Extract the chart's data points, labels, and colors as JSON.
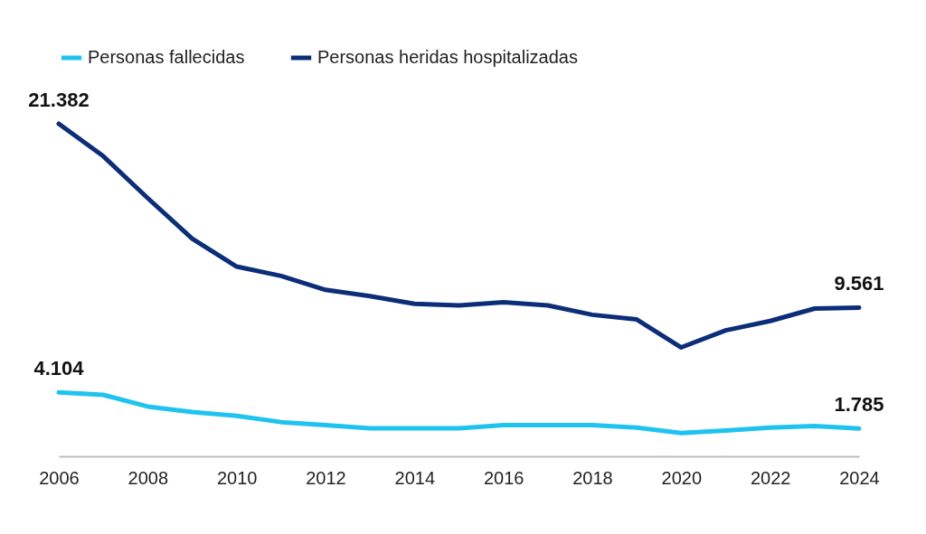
{
  "chart_data": {
    "type": "line",
    "x": [
      2006,
      2007,
      2008,
      2009,
      2010,
      2011,
      2012,
      2013,
      2014,
      2015,
      2016,
      2017,
      2018,
      2019,
      2020,
      2021,
      2022,
      2023,
      2024
    ],
    "xlim": [
      2006,
      2024
    ],
    "xticks": [
      2006,
      2008,
      2010,
      2012,
      2014,
      2016,
      2018,
      2020,
      2022,
      2024
    ],
    "tick_labels": "x",
    "grid": false,
    "legend": "top",
    "line_style": "solid",
    "series": [
      {
        "name": "Personas fallecidas",
        "color": "#1fc3ef",
        "values": [
          4104,
          3950,
          3200,
          2850,
          2600,
          2200,
          2000,
          1800,
          1800,
          1800,
          2000,
          2000,
          2000,
          1850,
          1500,
          1650,
          1850,
          1950,
          1785
        ],
        "value_labels": [
          "4.104",
          null,
          null,
          null,
          null,
          null,
          null,
          null,
          null,
          null,
          null,
          null,
          null,
          null,
          null,
          null,
          null,
          null,
          "1.785"
        ]
      },
      {
        "name": "Personas heridas hospitalizadas",
        "color": "#0c2d78",
        "values": [
          21382,
          19300,
          16600,
          14000,
          12200,
          11600,
          10700,
          10300,
          9800,
          9700,
          9900,
          9700,
          9100,
          8800,
          7000,
          8100,
          8700,
          9500,
          9561
        ],
        "value_labels": [
          "21.382",
          null,
          null,
          null,
          null,
          null,
          null,
          null,
          null,
          null,
          null,
          null,
          null,
          null,
          null,
          null,
          null,
          null,
          "9.561"
        ]
      }
    ]
  }
}
